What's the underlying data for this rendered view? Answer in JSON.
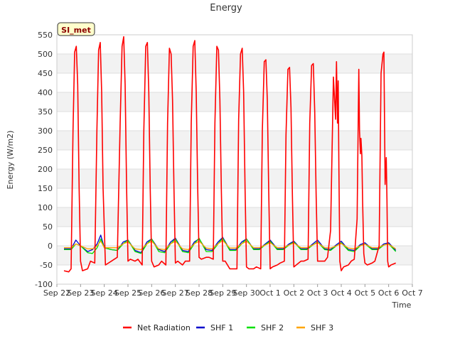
{
  "chart_data": {
    "type": "line",
    "title": "Energy",
    "xlabel": "Time",
    "ylabel": "Energy (W/m2)",
    "site_label": "SI_met",
    "ylim": [
      -100,
      550
    ],
    "yticks": [
      -100,
      -50,
      0,
      50,
      100,
      150,
      200,
      250,
      300,
      350,
      400,
      450,
      500,
      550
    ],
    "xlim": [
      0,
      15
    ],
    "x_unit": "days since Sep 22",
    "xtick_labels": [
      "Sep 22",
      "Sep 23",
      "Sep 24",
      "Sep 25",
      "Sep 26",
      "Sep 27",
      "Sep 28",
      "Sep 29",
      "Sep 30",
      "Oct 1",
      "Oct 2",
      "Oct 3",
      "Oct 4",
      "Oct 5",
      "Oct 6",
      "Oct 7"
    ],
    "legend_position": "bottom-center",
    "series": [
      {
        "name": "Net Radiation",
        "color": "#ff0000",
        "x": [
          0.3,
          0.5,
          0.6,
          0.68,
          0.75,
          0.82,
          0.88,
          0.94,
          1.0,
          1.08,
          1.3,
          1.42,
          1.6,
          1.69,
          1.76,
          1.83,
          1.89,
          1.95,
          2.05,
          2.3,
          2.42,
          2.55,
          2.67,
          2.75,
          2.82,
          2.88,
          2.94,
          3.0,
          3.1,
          3.3,
          3.42,
          3.6,
          3.67,
          3.75,
          3.82,
          3.88,
          3.94,
          4.0,
          4.1,
          4.3,
          4.42,
          4.6,
          4.67,
          4.75,
          4.82,
          4.88,
          4.94,
          5.0,
          5.1,
          5.3,
          5.42,
          5.6,
          5.67,
          5.75,
          5.82,
          5.88,
          5.94,
          6.0,
          6.1,
          6.3,
          6.42,
          6.6,
          6.67,
          6.75,
          6.82,
          6.88,
          6.94,
          7.0,
          7.1,
          7.3,
          7.42,
          7.6,
          7.67,
          7.75,
          7.82,
          7.88,
          7.94,
          8.0,
          8.1,
          8.3,
          8.42,
          8.6,
          8.67,
          8.75,
          8.82,
          8.88,
          8.94,
          9.0,
          9.1,
          9.3,
          9.42,
          9.6,
          9.67,
          9.75,
          9.82,
          9.88,
          9.94,
          10.0,
          10.1,
          10.3,
          10.42,
          10.6,
          10.67,
          10.75,
          10.82,
          10.88,
          10.94,
          11.0,
          11.1,
          11.3,
          11.42,
          11.55,
          11.67,
          11.76,
          11.8,
          11.84,
          11.87,
          11.9,
          11.94,
          12.0,
          12.1,
          12.3,
          12.42,
          12.55,
          12.67,
          12.74,
          12.77,
          12.81,
          12.83,
          12.87,
          12.9,
          12.95,
          13.0,
          13.1,
          13.3,
          13.42,
          13.6,
          13.68,
          13.76,
          13.8,
          13.85,
          13.9,
          13.93,
          13.96,
          14.0,
          14.1,
          14.3
        ],
        "values": [
          -65,
          -68,
          -60,
          300,
          505,
          520,
          420,
          150,
          -40,
          -65,
          -60,
          -40,
          -45,
          300,
          510,
          530,
          400,
          150,
          -50,
          -40,
          -35,
          -30,
          320,
          520,
          545,
          420,
          160,
          -40,
          -35,
          -40,
          -35,
          -50,
          300,
          520,
          530,
          400,
          150,
          -40,
          -55,
          -50,
          -40,
          -50,
          320,
          515,
          500,
          380,
          150,
          -45,
          -40,
          -50,
          -40,
          -40,
          320,
          520,
          535,
          400,
          160,
          -30,
          -35,
          -30,
          -30,
          -35,
          320,
          520,
          510,
          380,
          150,
          -40,
          -40,
          -60,
          -60,
          -60,
          330,
          500,
          515,
          400,
          150,
          -55,
          -60,
          -60,
          -55,
          -60,
          300,
          480,
          485,
          380,
          140,
          -60,
          -55,
          -50,
          -45,
          -40,
          290,
          460,
          465,
          360,
          130,
          -55,
          -50,
          -40,
          -40,
          -35,
          320,
          470,
          475,
          350,
          130,
          -40,
          -40,
          -40,
          -30,
          40,
          440,
          330,
          480,
          320,
          430,
          200,
          -40,
          -65,
          -55,
          -50,
          -40,
          -35,
          70,
          460,
          300,
          240,
          280,
          235,
          120,
          -20,
          -45,
          -50,
          -45,
          -40,
          0,
          450,
          500,
          505,
          160,
          230,
          120,
          -40,
          -55,
          -50,
          -45
        ]
      },
      {
        "name": "SHF 1",
        "color": "#0000cc",
        "x": [
          0.3,
          0.6,
          0.8,
          1.0,
          1.3,
          1.5,
          1.7,
          1.85,
          2.0,
          2.3,
          2.55,
          2.8,
          3.0,
          3.3,
          3.55,
          3.8,
          4.0,
          4.3,
          4.55,
          4.8,
          5.0,
          5.3,
          5.55,
          5.8,
          6.0,
          6.3,
          6.55,
          6.8,
          7.0,
          7.3,
          7.55,
          7.8,
          8.0,
          8.3,
          8.55,
          8.8,
          9.0,
          9.3,
          9.55,
          9.8,
          10.0,
          10.3,
          10.55,
          10.8,
          11.0,
          11.3,
          11.55,
          11.8,
          12.0,
          12.3,
          12.55,
          12.8,
          13.0,
          13.3,
          13.55,
          13.8,
          14.0,
          14.3
        ],
        "values": [
          -8,
          -8,
          15,
          0,
          -15,
          -10,
          5,
          28,
          -5,
          -10,
          -12,
          10,
          15,
          -12,
          -18,
          10,
          18,
          -10,
          -15,
          10,
          20,
          -12,
          -15,
          10,
          18,
          -10,
          -12,
          10,
          22,
          -10,
          -10,
          10,
          18,
          -8,
          -8,
          5,
          15,
          -8,
          -8,
          5,
          12,
          -8,
          -8,
          5,
          15,
          -8,
          -10,
          3,
          12,
          -10,
          -12,
          3,
          8,
          -8,
          -8,
          5,
          8,
          -12
        ]
      },
      {
        "name": "SHF 2",
        "color": "#00e000",
        "x": [
          0.3,
          0.6,
          0.8,
          1.0,
          1.3,
          1.5,
          1.7,
          1.85,
          2.0,
          2.3,
          2.55,
          2.8,
          3.0,
          3.3,
          3.55,
          3.8,
          4.0,
          4.3,
          4.55,
          4.8,
          5.0,
          5.3,
          5.55,
          5.8,
          6.0,
          6.3,
          6.55,
          6.8,
          7.0,
          7.3,
          7.55,
          7.8,
          8.0,
          8.3,
          8.55,
          8.8,
          9.0,
          9.3,
          9.55,
          9.8,
          10.0,
          10.3,
          10.55,
          10.8,
          11.0,
          11.3,
          11.55,
          11.8,
          12.0,
          12.3,
          12.55,
          12.8,
          13.0,
          13.3,
          13.55,
          13.8,
          14.0,
          14.3
        ],
        "values": [
          -10,
          -10,
          5,
          0,
          -18,
          -20,
          -5,
          18,
          -5,
          -10,
          -12,
          5,
          15,
          -15,
          -20,
          5,
          18,
          -15,
          -18,
          5,
          18,
          -15,
          -18,
          5,
          20,
          -15,
          -15,
          5,
          20,
          -12,
          -12,
          5,
          18,
          -10,
          -10,
          3,
          12,
          -10,
          -10,
          2,
          10,
          -10,
          -10,
          2,
          10,
          -10,
          -12,
          0,
          8,
          -12,
          -15,
          0,
          5,
          -10,
          -10,
          2,
          5,
          -15
        ]
      },
      {
        "name": "SHF 3",
        "color": "#ffa500",
        "x": [
          0.3,
          0.6,
          0.8,
          1.0,
          1.3,
          1.5,
          1.7,
          1.85,
          2.0,
          2.3,
          2.55,
          2.8,
          3.0,
          3.3,
          3.55,
          3.8,
          4.0,
          4.3,
          4.55,
          4.8,
          5.0,
          5.3,
          5.55,
          5.8,
          6.0,
          6.3,
          6.55,
          6.8,
          7.0,
          7.3,
          7.55,
          7.8,
          8.0,
          8.3,
          8.55,
          8.8,
          9.0,
          9.3,
          9.55,
          9.8,
          10.0,
          10.3,
          10.55,
          10.8,
          11.0,
          11.3,
          11.55,
          11.8,
          12.0,
          12.3,
          12.55,
          12.8,
          13.0,
          13.3,
          13.55,
          13.8,
          14.0,
          14.3
        ],
        "values": [
          -5,
          -5,
          5,
          0,
          -8,
          -8,
          0,
          12,
          -5,
          -5,
          -5,
          5,
          10,
          -8,
          -10,
          5,
          12,
          -8,
          -10,
          5,
          12,
          -8,
          -10,
          5,
          12,
          -6,
          -8,
          5,
          14,
          -6,
          -6,
          5,
          12,
          -5,
          -5,
          2,
          8,
          -5,
          -5,
          2,
          7,
          -5,
          -5,
          2,
          8,
          -5,
          -6,
          0,
          6,
          -6,
          -8,
          0,
          4,
          -5,
          -5,
          2,
          4,
          -8
        ]
      }
    ]
  }
}
